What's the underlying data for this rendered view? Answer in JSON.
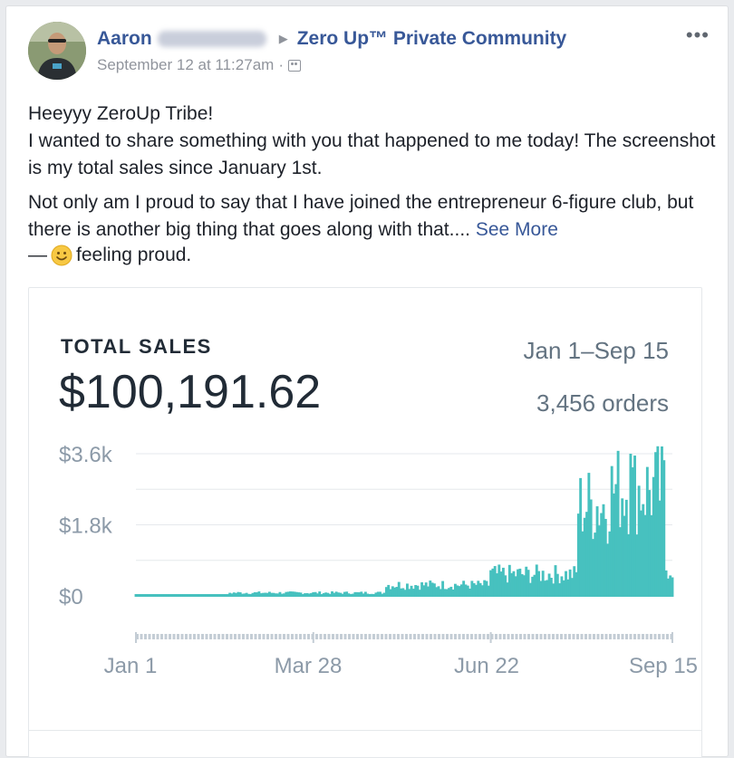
{
  "post": {
    "author_first_name": "Aaron",
    "group_name": "Zero Up™ Private Community",
    "timestamp": "September 12 at 11:27am",
    "separator": "·",
    "menu_label": "•••",
    "audience_icon": "group-audience-icon",
    "paragraph_1_line_1": "Heeyyy ZeroUp Tribe!",
    "paragraph_1_line_2": "I wanted to share something with you that happened to me today! The screenshot is my total sales since January 1st.",
    "paragraph_2": "Not only am I proud to say that I have joined the entrepreneur 6-figure club, but there is another big thing that goes along with that....",
    "see_more": "See More",
    "feeling_prefix": "—",
    "feeling_text": "feeling proud."
  },
  "card": {
    "metric_title": "TOTAL SALES",
    "metric_value": "$100,191.62",
    "date_range": "Jan 1–Sep 15",
    "order_count": "3,456 orders"
  },
  "colors": {
    "link": "#385898",
    "bar_fill": "#47c1bf",
    "text": "#1d2129",
    "muted": "#90949c"
  },
  "chart_data": {
    "type": "bar",
    "y_ticks": [
      "$3.6k",
      "$1.8k",
      "$0"
    ],
    "x_ticks": [
      "Jan 1",
      "Mar 28",
      "Jun 22",
      "Sep 15"
    ],
    "ylim": [
      0,
      3600
    ],
    "x_start": "Jan 1",
    "x_end": "Sep 15",
    "grid": true,
    "segments": [
      {
        "from": "Jan 1",
        "to": "Feb 15",
        "approx_daily_sales": 30
      },
      {
        "from": "Feb 15",
        "to": "May 1",
        "approx_daily_sales": 80
      },
      {
        "from": "May 1",
        "to": "Jun 20",
        "approx_daily_sales": 280
      },
      {
        "from": "Jun 20",
        "to": "Jul 31",
        "approx_daily_sales": 550
      },
      {
        "from": "Aug 1",
        "to": "Aug 15",
        "approx_daily_sales": 2300
      },
      {
        "from": "Aug 16",
        "to": "Sep 11",
        "approx_daily_sales": 2700
      },
      {
        "from": "Sep 12",
        "to": "Sep 15",
        "approx_daily_sales": 700
      }
    ],
    "peak_value": 3600,
    "peak_date": "Aug 26"
  }
}
